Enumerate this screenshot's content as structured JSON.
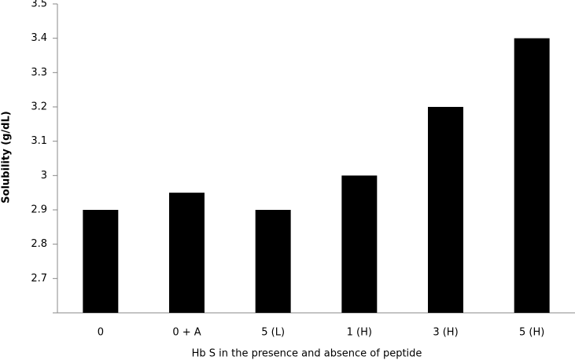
{
  "chart_data": {
    "type": "bar",
    "x_label": "Hb S in the presence and absence of peptide",
    "y_label": "Solubility (g/dL)",
    "categories": [
      "0",
      "0 + A",
      "5 (L)",
      "1 (H)",
      "3 (H)",
      "5 (H)"
    ],
    "values": [
      2.9,
      2.95,
      2.9,
      3,
      3.2,
      3.4
    ],
    "color": "#000000",
    "ylim": [
      2.6,
      3.5
    ],
    "yticks": [
      2.7,
      2.8,
      2.9,
      3,
      3.1,
      3.2,
      3.3,
      3.4,
      3.5
    ],
    "grid": false
  }
}
